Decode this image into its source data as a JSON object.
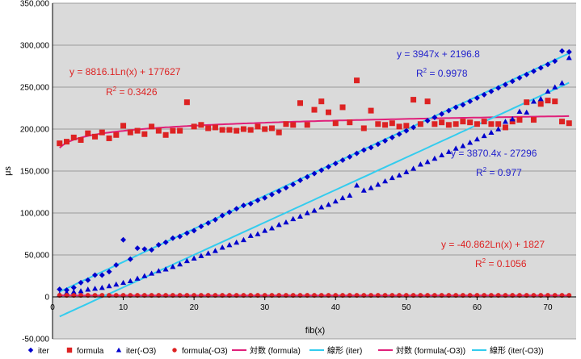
{
  "chart_data": {
    "type": "scatter",
    "xlabel": "fib(x)",
    "ylabel": "μs",
    "xlim": [
      0,
      74
    ],
    "ylim": [
      -50000,
      350000
    ],
    "x_ticks": [
      0,
      10,
      20,
      30,
      40,
      50,
      60,
      70
    ],
    "y_ticks": [
      -50000,
      0,
      50000,
      100000,
      150000,
      200000,
      250000,
      300000,
      350000
    ],
    "y_tick_labels": [
      "-50,000",
      "0",
      "50,000",
      "100,000",
      "150,000",
      "200,000",
      "250,000",
      "300,000",
      "350,000"
    ],
    "grid": "horizontal",
    "legend_position": "bottom",
    "series": [
      {
        "name": "iter",
        "marker": "diamond",
        "color": "#0000CC",
        "x": [
          1,
          2,
          3,
          4,
          5,
          6,
          7,
          8,
          9,
          10,
          11,
          12,
          13,
          14,
          15,
          16,
          17,
          18,
          19,
          20,
          21,
          22,
          23,
          24,
          25,
          26,
          27,
          28,
          29,
          30,
          31,
          32,
          33,
          34,
          35,
          36,
          37,
          38,
          39,
          40,
          41,
          42,
          43,
          44,
          45,
          46,
          47,
          48,
          49,
          50,
          51,
          52,
          53,
          54,
          55,
          56,
          57,
          58,
          59,
          60,
          61,
          62,
          63,
          64,
          65,
          66,
          67,
          68,
          69,
          70,
          71,
          72,
          73
        ],
        "y": [
          9000,
          8000,
          11000,
          17000,
          20000,
          26000,
          26000,
          30000,
          38000,
          68000,
          45000,
          58000,
          57000,
          56000,
          62000,
          65000,
          70000,
          72000,
          76000,
          79000,
          84000,
          88000,
          92000,
          97000,
          101000,
          105000,
          109000,
          111000,
          115000,
          118000,
          122000,
          126000,
          130000,
          134000,
          139000,
          143000,
          147000,
          151000,
          155000,
          159000,
          163000,
          167000,
          171000,
          175000,
          178000,
          182000,
          186000,
          190000,
          194000,
          198000,
          202000,
          206000,
          210000,
          214000,
          218000,
          222000,
          226000,
          229000,
          233000,
          237000,
          241000,
          245000,
          249000,
          253000,
          257000,
          261000,
          265000,
          269000,
          273000,
          277000,
          281000,
          293000,
          292000
        ]
      },
      {
        "name": "formula",
        "marker": "square",
        "color": "#DD2222",
        "x": [
          1,
          2,
          3,
          4,
          5,
          6,
          7,
          8,
          9,
          10,
          11,
          12,
          13,
          14,
          15,
          16,
          17,
          18,
          19,
          20,
          21,
          22,
          23,
          24,
          25,
          26,
          27,
          28,
          29,
          30,
          31,
          32,
          33,
          34,
          35,
          36,
          37,
          38,
          39,
          40,
          41,
          42,
          43,
          44,
          45,
          46,
          47,
          48,
          49,
          50,
          51,
          52,
          53,
          54,
          55,
          56,
          57,
          58,
          59,
          60,
          61,
          62,
          63,
          64,
          65,
          66,
          67,
          68,
          69,
          70,
          71,
          72,
          73
        ],
        "y": [
          183000,
          185000,
          190000,
          187000,
          195000,
          191000,
          196000,
          189000,
          193000,
          204000,
          196000,
          198000,
          194000,
          203000,
          198000,
          193000,
          198000,
          198000,
          232000,
          203000,
          205000,
          201000,
          202000,
          199000,
          199000,
          198000,
          200000,
          199000,
          203000,
          200000,
          201000,
          196000,
          206000,
          205000,
          231000,
          205000,
          223000,
          233000,
          220000,
          207000,
          226000,
          208000,
          258000,
          201000,
          222000,
          206000,
          205000,
          207000,
          203000,
          204000,
          235000,
          206000,
          233000,
          206000,
          208000,
          205000,
          206000,
          209000,
          208000,
          206000,
          209000,
          206000,
          206000,
          202000,
          209000,
          211000,
          232000,
          211000,
          230000,
          234000,
          233000,
          209000,
          207000
        ]
      },
      {
        "name": "iter(-O3)",
        "marker": "triangle",
        "color": "#0000CC",
        "x": [
          1,
          2,
          3,
          4,
          5,
          6,
          7,
          8,
          9,
          10,
          11,
          12,
          13,
          14,
          15,
          16,
          17,
          18,
          19,
          20,
          21,
          22,
          23,
          24,
          25,
          26,
          27,
          28,
          29,
          30,
          31,
          32,
          33,
          34,
          35,
          36,
          37,
          38,
          39,
          40,
          41,
          42,
          43,
          44,
          45,
          46,
          47,
          48,
          49,
          50,
          51,
          52,
          53,
          54,
          55,
          56,
          57,
          58,
          59,
          60,
          61,
          62,
          63,
          64,
          65,
          66,
          67,
          68,
          69,
          70,
          71,
          72,
          73
        ],
        "y": [
          3000,
          5000,
          6000,
          7000,
          9000,
          10000,
          11000,
          13000,
          15000,
          17000,
          19000,
          22000,
          25000,
          28000,
          31000,
          33000,
          36000,
          39000,
          43000,
          46000,
          49000,
          52000,
          55000,
          59000,
          62000,
          65000,
          68000,
          73000,
          75000,
          79000,
          82000,
          86000,
          89000,
          93000,
          96000,
          100000,
          103000,
          107000,
          110000,
          114000,
          118000,
          121000,
          133000,
          127000,
          130000,
          134000,
          138000,
          142000,
          145000,
          149000,
          153000,
          158000,
          161000,
          165000,
          169000,
          173000,
          177000,
          180000,
          184000,
          188000,
          192000,
          196000,
          200000,
          209000,
          212000,
          221000,
          220000,
          233000,
          236000,
          245000,
          250000,
          255000,
          285000
        ]
      },
      {
        "name": "formula(-O3)",
        "marker": "circle",
        "color": "#DD2222",
        "x": [
          1,
          2,
          3,
          4,
          5,
          6,
          7,
          8,
          9,
          10,
          11,
          12,
          13,
          14,
          15,
          16,
          17,
          18,
          19,
          20,
          21,
          22,
          23,
          24,
          25,
          26,
          27,
          28,
          29,
          30,
          31,
          32,
          33,
          34,
          35,
          36,
          37,
          38,
          39,
          40,
          41,
          42,
          43,
          44,
          45,
          46,
          47,
          48,
          49,
          50,
          51,
          52,
          53,
          54,
          55,
          56,
          57,
          58,
          59,
          60,
          61,
          62,
          63,
          64,
          65,
          66,
          67,
          68,
          69,
          70,
          71,
          72,
          73
        ],
        "y": [
          1800,
          1800,
          1800,
          1800,
          1800,
          1800,
          1800,
          1800,
          1800,
          1800,
          1800,
          1800,
          1800,
          1800,
          1800,
          1800,
          1800,
          1800,
          1800,
          1800,
          1800,
          1800,
          1800,
          1800,
          1800,
          1800,
          1800,
          1800,
          1800,
          1800,
          1800,
          1800,
          1800,
          1800,
          1800,
          1800,
          1800,
          1800,
          1800,
          1800,
          1800,
          1800,
          1800,
          1800,
          1800,
          1800,
          1800,
          1800,
          1800,
          1800,
          1800,
          1800,
          1800,
          1800,
          1800,
          1800,
          1800,
          1800,
          1800,
          1800,
          1800,
          1800,
          1800,
          1800,
          1800,
          1800,
          1800,
          1800,
          1800,
          1800,
          1800,
          1800,
          1800
        ]
      }
    ],
    "trendlines": [
      {
        "name": "対数 (formula)",
        "type": "log",
        "a": 8816.1,
        "b": 177627,
        "color": "#E0207A",
        "x_range": [
          1,
          73
        ]
      },
      {
        "name": "線形 (iter)",
        "type": "linear",
        "a": 3947,
        "b": 2196.8,
        "color": "#33CCEE",
        "x_range": [
          1,
          73
        ]
      },
      {
        "name": "対数 (formula(-O3))",
        "type": "log",
        "a": -40.862,
        "b": 1827,
        "color": "#E0207A",
        "x_range": [
          1,
          73
        ]
      },
      {
        "name": "線形 (iter(-O3))",
        "type": "linear",
        "a": 3870.4,
        "b": -27296,
        "color": "#33CCEE",
        "x_range": [
          1,
          73
        ]
      }
    ],
    "annotations": [
      {
        "text": "y = 8816.1Ln(x) + 177627",
        "color": "#DD2222",
        "r2_label": "R",
        "r2_sup": "2",
        "r2_value": " = 0.3426"
      },
      {
        "text": "y = 3947x + 2196.8",
        "color": "#2222CC",
        "r2_label": "R",
        "r2_sup": "2",
        "r2_value": " = 0.9978"
      },
      {
        "text": "y = 3870.4x - 27296",
        "color": "#2222CC",
        "r2_label": "R",
        "r2_sup": "2",
        "r2_value": " = 0.977"
      },
      {
        "text": "y = -40.862Ln(x) + 1827",
        "color": "#DD2222",
        "r2_label": "R",
        "r2_sup": "2",
        "r2_value": " = 0.1056"
      }
    ]
  }
}
